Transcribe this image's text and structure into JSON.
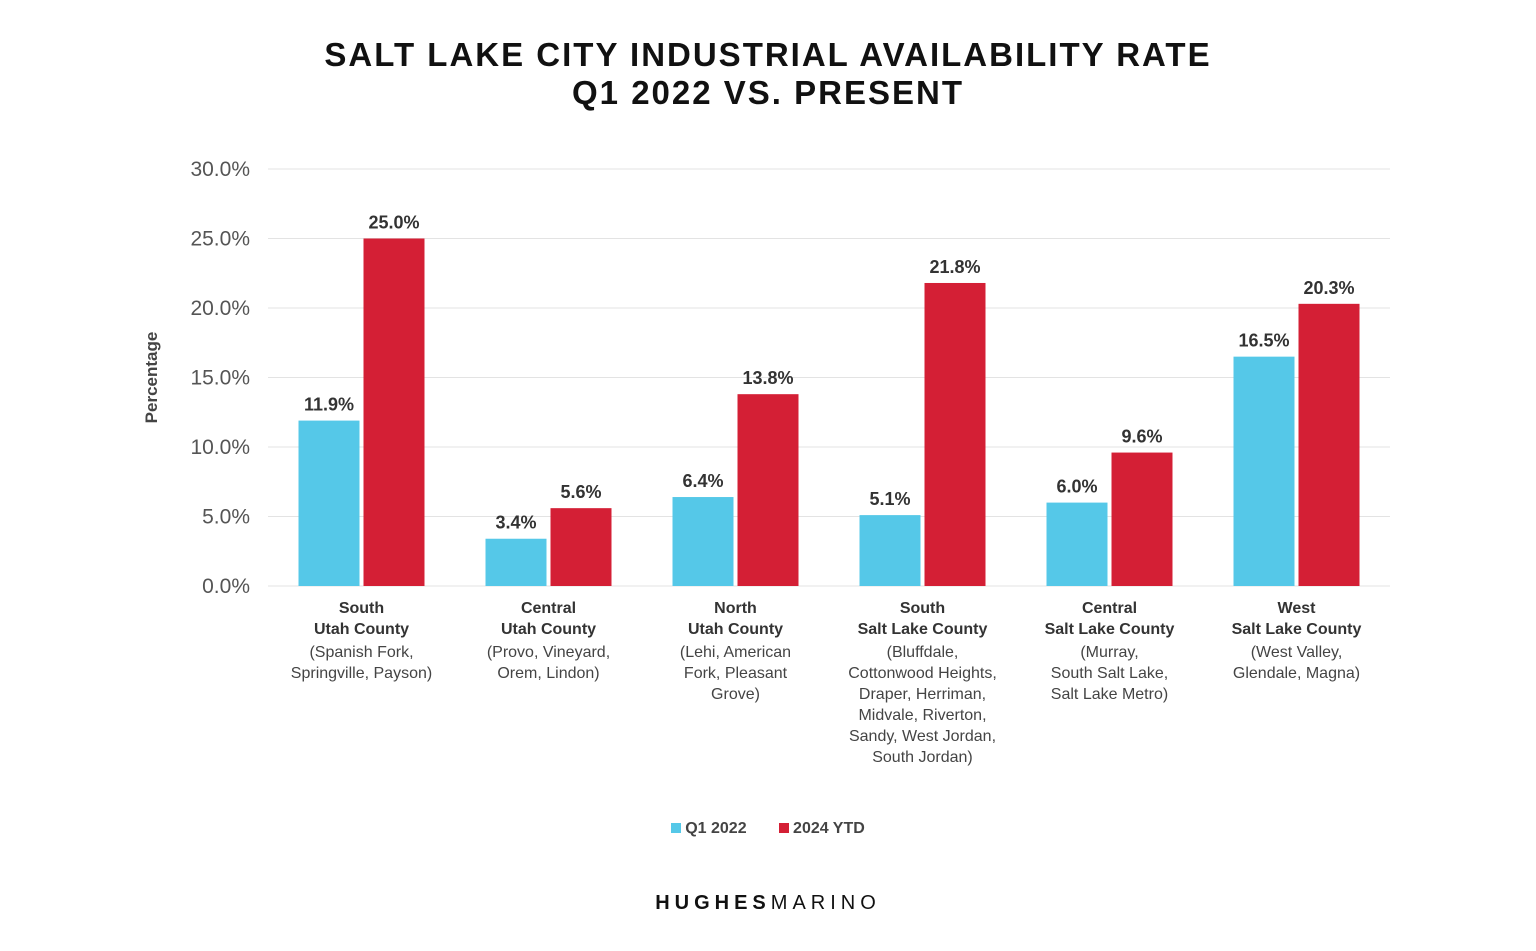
{
  "colors": {
    "q1": "#55c8e8",
    "ytd": "#d41f35",
    "grid": "#e3e3e3"
  },
  "brand": {
    "bold": "HUGHES",
    "light": "MARINO"
  },
  "chart_data": {
    "type": "bar",
    "title": "SALT LAKE CITY INDUSTRIAL AVAILABILITY RATE",
    "subtitle": "Q1 2022 VS. PRESENT",
    "ylabel": "Percentage",
    "xlabel": "",
    "ylim": [
      0,
      30
    ],
    "yticks": [
      "0.0%",
      "5.0%",
      "10.0%",
      "15.0%",
      "20.0%",
      "25.0%",
      "30.0%"
    ],
    "ytick_values": [
      0,
      5,
      10,
      15,
      20,
      25,
      30
    ],
    "grid": true,
    "legend_position": "bottom-center",
    "categories": [
      {
        "name": [
          "South",
          "Utah County"
        ],
        "detail": [
          "(Spanish Fork,",
          "Springville, Payson)"
        ]
      },
      {
        "name": [
          "Central",
          "Utah County"
        ],
        "detail": [
          "(Provo, Vineyard,",
          "Orem, Lindon)"
        ]
      },
      {
        "name": [
          "North",
          "Utah County"
        ],
        "detail": [
          "(Lehi, American",
          "Fork, Pleasant",
          "Grove)"
        ]
      },
      {
        "name": [
          "South",
          "Salt Lake County"
        ],
        "detail": [
          "(Bluffdale,",
          "Cottonwood Heights,",
          "Draper, Herriman,",
          "Midvale, Riverton,",
          "Sandy, West Jordan,",
          "South Jordan)"
        ]
      },
      {
        "name": [
          "Central",
          "Salt Lake County"
        ],
        "detail": [
          "(Murray,",
          "South Salt Lake,",
          "Salt Lake Metro)"
        ]
      },
      {
        "name": [
          "West",
          "Salt Lake County"
        ],
        "detail": [
          "(West Valley,",
          "Glendale, Magna)"
        ]
      }
    ],
    "series": [
      {
        "name": "Q1 2022",
        "values": [
          11.9,
          3.4,
          6.4,
          5.1,
          6.0,
          16.5
        ],
        "labels": [
          "11.9%",
          "3.4%",
          "6.4%",
          "5.1%",
          "6.0%",
          "16.5%"
        ]
      },
      {
        "name": "2024 YTD",
        "values": [
          25.0,
          5.6,
          13.8,
          21.8,
          9.6,
          20.3
        ],
        "labels": [
          "25.0%",
          "5.6%",
          "13.8%",
          "21.8%",
          "9.6%",
          "20.3%"
        ]
      }
    ]
  }
}
